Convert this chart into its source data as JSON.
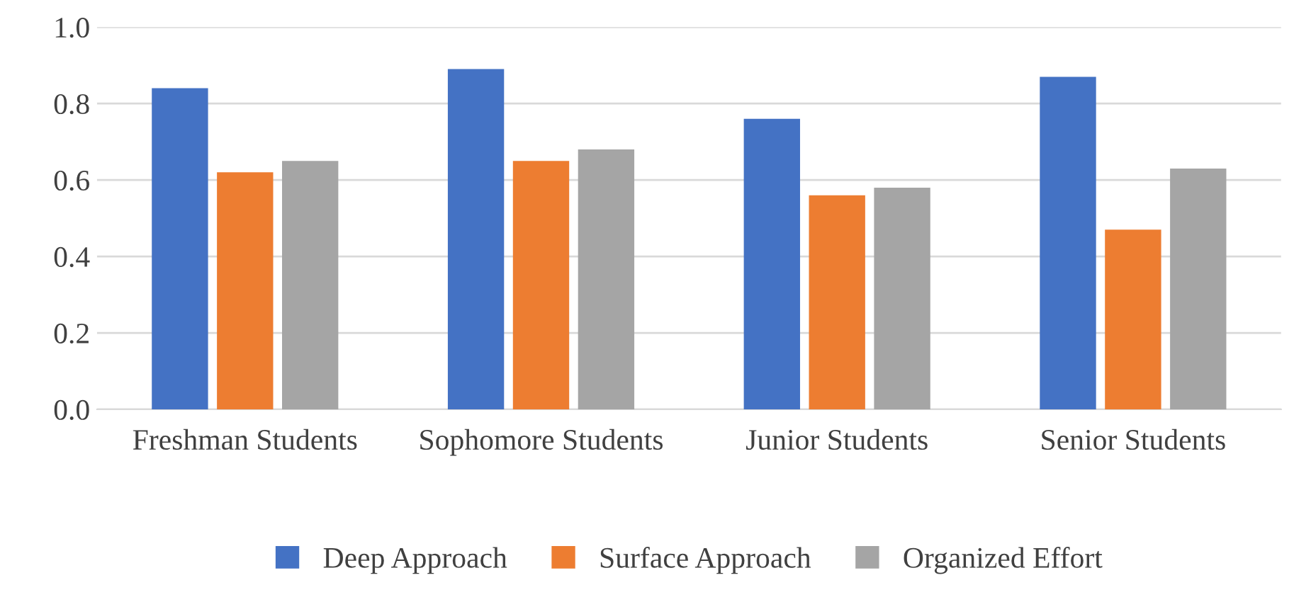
{
  "chart_data": {
    "type": "bar",
    "categories": [
      "Freshman Students",
      "Sophomore Students",
      "Junior Students",
      "Senior Students"
    ],
    "series": [
      {
        "name": "Deep Approach",
        "color": "#4472c4",
        "values": [
          0.84,
          0.89,
          0.76,
          0.87
        ]
      },
      {
        "name": "Surface Approach",
        "color": "#ed7d31",
        "values": [
          0.62,
          0.65,
          0.56,
          0.47
        ]
      },
      {
        "name": "Organized Effort",
        "color": "#a5a5a5",
        "values": [
          0.65,
          0.68,
          0.58,
          0.63
        ]
      }
    ],
    "ylim": [
      0,
      1.0
    ],
    "yticks": [
      {
        "value": 0,
        "label": "0.0"
      },
      {
        "value": 0.2,
        "label": "0.2"
      },
      {
        "value": 0.4,
        "label": "0.4"
      },
      {
        "value": 0.6,
        "label": "0.6"
      },
      {
        "value": 0.8,
        "label": "0.8"
      },
      {
        "value": 1.0,
        "label": "1.0"
      }
    ],
    "grid": "y",
    "legend": "bottom"
  }
}
